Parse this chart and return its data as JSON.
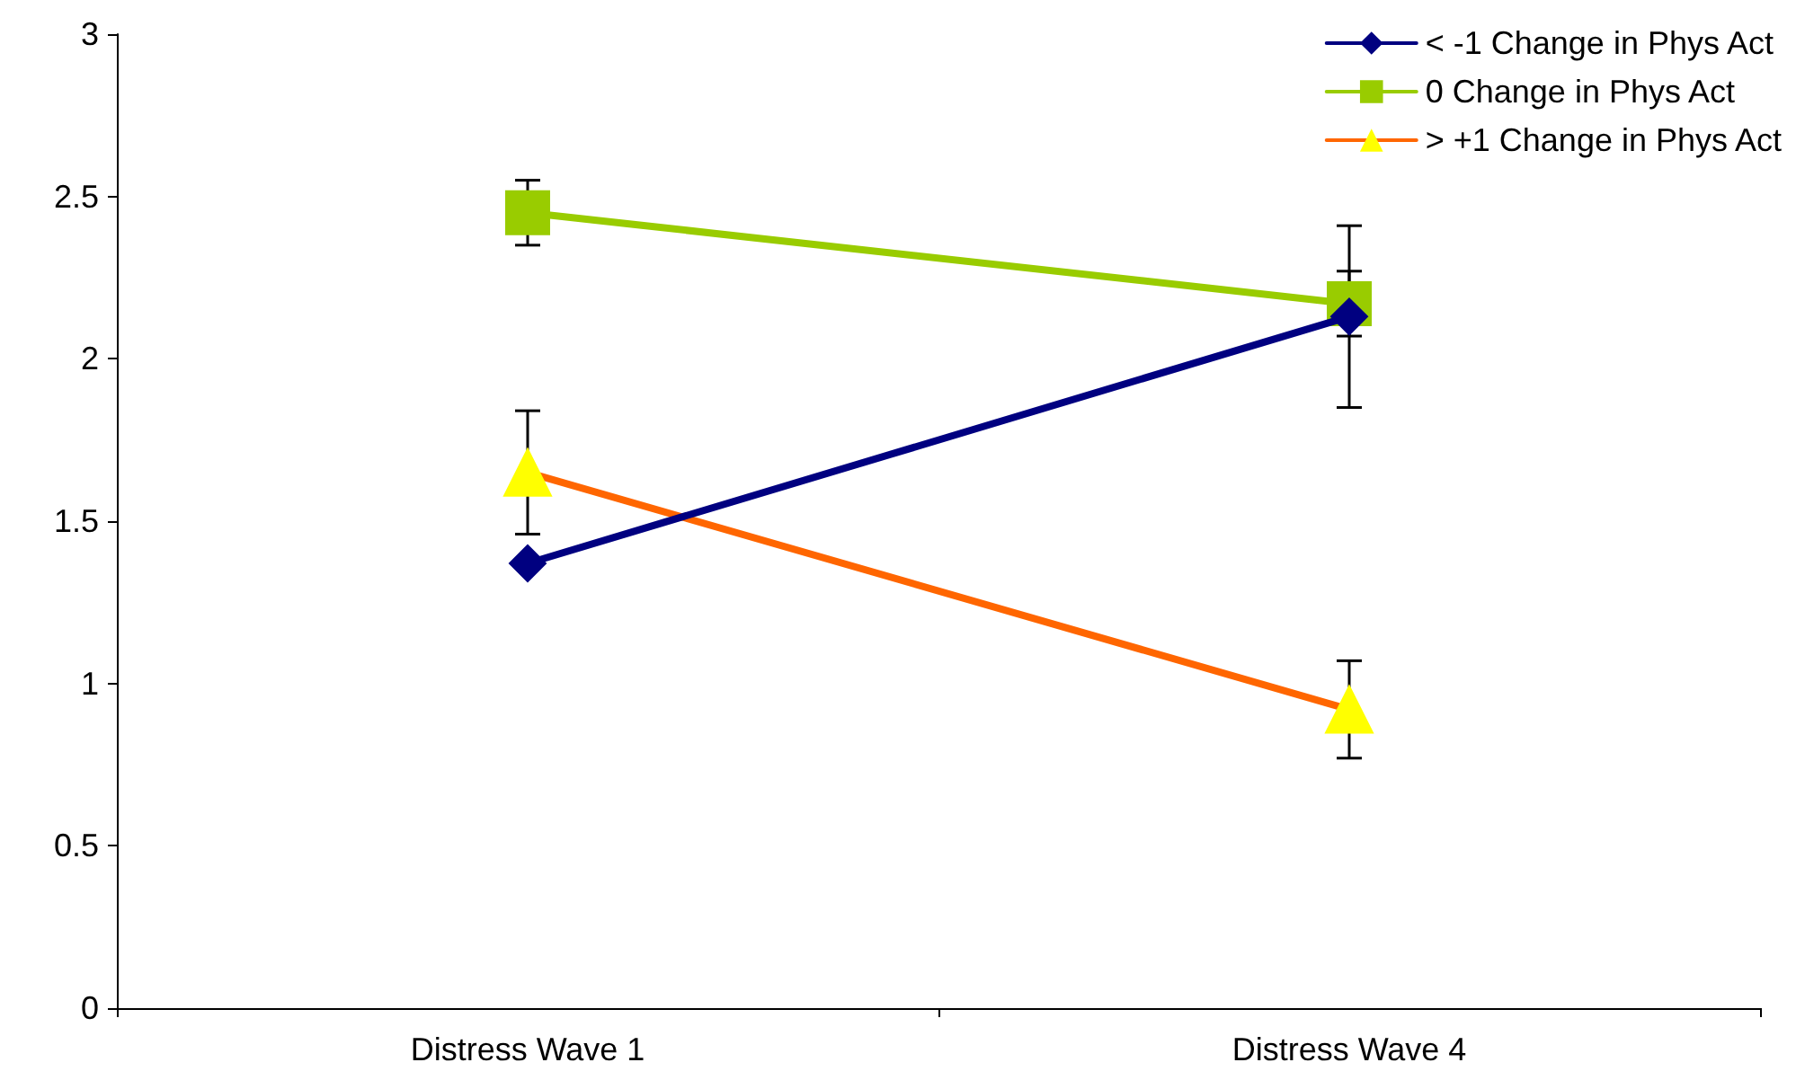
{
  "chart_data": {
    "type": "line",
    "categories": [
      "Distress Wave 1",
      "Distress Wave 4"
    ],
    "series": [
      {
        "name": "< -1 Change in Phys Act",
        "color": "#000080",
        "marker": "diamond",
        "values": [
          1.37,
          2.13
        ],
        "errors": [
          null,
          0.28
        ]
      },
      {
        "name": "0 Change in Phys Act",
        "color": "#99cc00",
        "marker": "square",
        "values": [
          2.45,
          2.17
        ],
        "errors": [
          0.1,
          0.1
        ]
      },
      {
        "name": "> +1 Change in Phys Act",
        "color": "#ff6600",
        "colors": [
          "#ffff00",
          "#ffff00"
        ],
        "marker": "triangle",
        "values": [
          1.65,
          0.92
        ],
        "errors": [
          0.19,
          0.15
        ]
      }
    ],
    "ylim": [
      0,
      3
    ],
    "yticks": [
      0,
      0.5,
      1,
      1.5,
      2,
      2.5,
      3
    ],
    "grid": false,
    "legend": "top right"
  }
}
